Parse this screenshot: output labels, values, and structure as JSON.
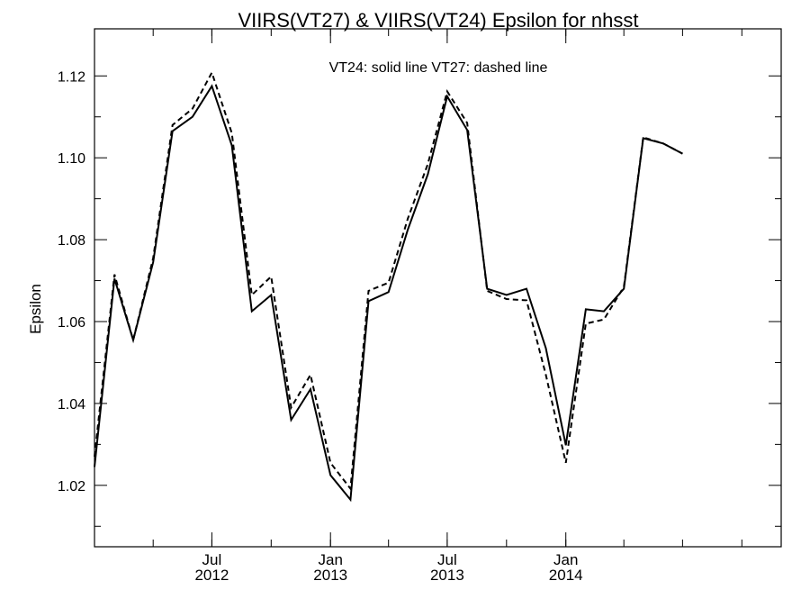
{
  "chart_data": {
    "type": "line",
    "title": "VIIRS(VT27) & VIIRS(VT24)  Epsilon for nhsst",
    "annotation": "VT24: solid line   VT27: dashed line",
    "xlabel": "",
    "ylabel": "Epsilon",
    "ylim": [
      1.005,
      1.1315
    ],
    "xlim": [
      "2012-01-01",
      "2014-12-01"
    ],
    "y_ticks": [
      "1.02",
      "1.04",
      "1.06",
      "1.08",
      "1.10",
      "1.12"
    ],
    "x_ticks": [
      {
        "month": "Jul",
        "year": "2012",
        "date": "2012-07-01"
      },
      {
        "month": "Jan",
        "year": "2013",
        "date": "2013-01-01"
      },
      {
        "month": "Jul",
        "year": "2013",
        "date": "2013-07-01"
      },
      {
        "month": "Jan",
        "year": "2014",
        "date": "2014-01-01"
      }
    ],
    "x": [
      "2012-01",
      "2012-02",
      "2012-03",
      "2012-04",
      "2012-05",
      "2012-06",
      "2012-07",
      "2012-08",
      "2012-09",
      "2012-10",
      "2012-11",
      "2012-12",
      "2013-01",
      "2013-02",
      "2013-03",
      "2013-04",
      "2013-05",
      "2013-06",
      "2013-07",
      "2013-08",
      "2013-09",
      "2013-10",
      "2013-11",
      "2013-12",
      "2014-01",
      "2014-02",
      "2014-03",
      "2014-04",
      "2014-05",
      "2014-06",
      "2014-07"
    ],
    "series": [
      {
        "name": "VT24",
        "style": "solid",
        "values": [
          1.0245,
          1.0705,
          1.0555,
          1.0745,
          1.1065,
          1.11,
          1.1175,
          1.103,
          1.0625,
          1.0665,
          1.036,
          1.0435,
          1.0225,
          1.0165,
          1.065,
          1.0672,
          1.0825,
          1.096,
          1.115,
          1.1068,
          1.068,
          1.0665,
          1.068,
          1.0535,
          1.0298,
          1.063,
          1.0625,
          1.068,
          1.1048,
          1.1035,
          1.101
        ]
      },
      {
        "name": "VT27",
        "style": "dashed",
        "values": [
          1.027,
          1.0715,
          1.0555,
          1.0755,
          1.108,
          1.112,
          1.1208,
          1.106,
          1.0665,
          1.071,
          1.039,
          1.047,
          1.0255,
          1.0192,
          1.0675,
          1.0695,
          1.0852,
          1.0985,
          1.1162,
          1.1085,
          1.0675,
          1.0655,
          1.0652,
          1.047,
          1.0255,
          1.0595,
          1.0605,
          1.0685,
          1.105,
          1.1035,
          1.101
        ]
      }
    ]
  }
}
